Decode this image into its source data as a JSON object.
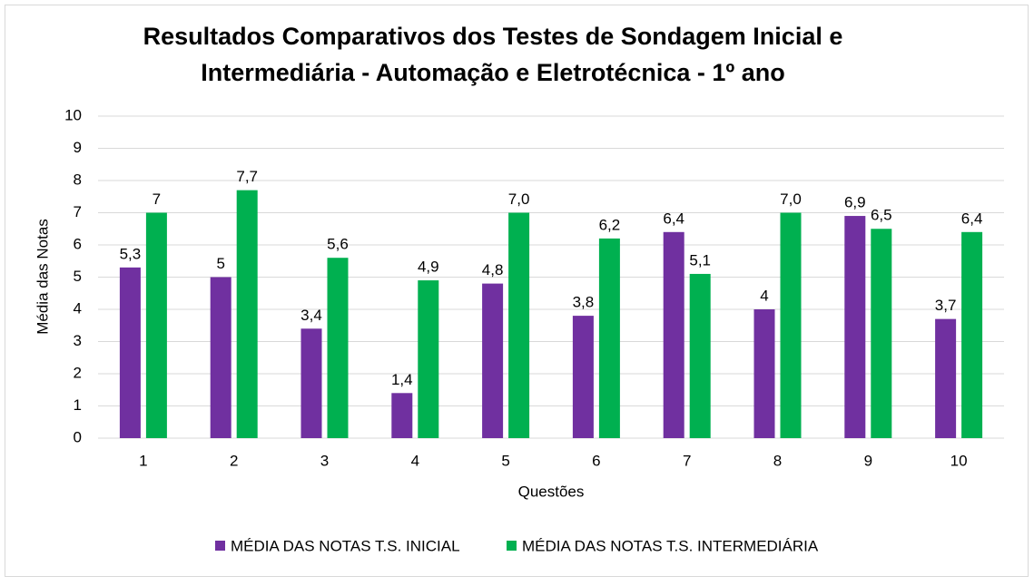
{
  "chart_data": {
    "type": "bar",
    "title": "Resultados Comparativos dos Testes de Sondagem Inicial e Intermediária - Automação e Eletrotécnica - 1º ano",
    "x_label": "Questões",
    "y_label": "Média das Notas",
    "categories": [
      "1",
      "2",
      "3",
      "4",
      "5",
      "6",
      "7",
      "8",
      "9",
      "10"
    ],
    "series": [
      {
        "name": "MÉDIA DAS NOTAS T.S. INICIAL",
        "color": "#7030a0",
        "values": [
          5.3,
          5,
          3.4,
          1.4,
          4.8,
          3.8,
          6.4,
          4,
          6.9,
          3.7
        ],
        "value_labels": [
          "5,3",
          "5",
          "3,4",
          "1,4",
          "4,8",
          "3,8",
          "6,4",
          "4",
          "6,9",
          "3,7"
        ]
      },
      {
        "name": "MÉDIA DAS NOTAS T.S. INTERMEDIÁRIA",
        "color": "#00b050",
        "values": [
          7,
          7.7,
          5.6,
          4.9,
          7.0,
          6.2,
          5.1,
          7.0,
          6.5,
          6.4
        ],
        "value_labels": [
          "7",
          "7,7",
          "5,6",
          "4,9",
          "7,0",
          "6,2",
          "5,1",
          "7,0",
          "6,5",
          "6,4"
        ]
      }
    ],
    "ylim": [
      0,
      10
    ],
    "yticks": [
      0,
      1,
      2,
      3,
      4,
      5,
      6,
      7,
      8,
      9,
      10
    ],
    "grid": true,
    "legend": "bottom"
  }
}
